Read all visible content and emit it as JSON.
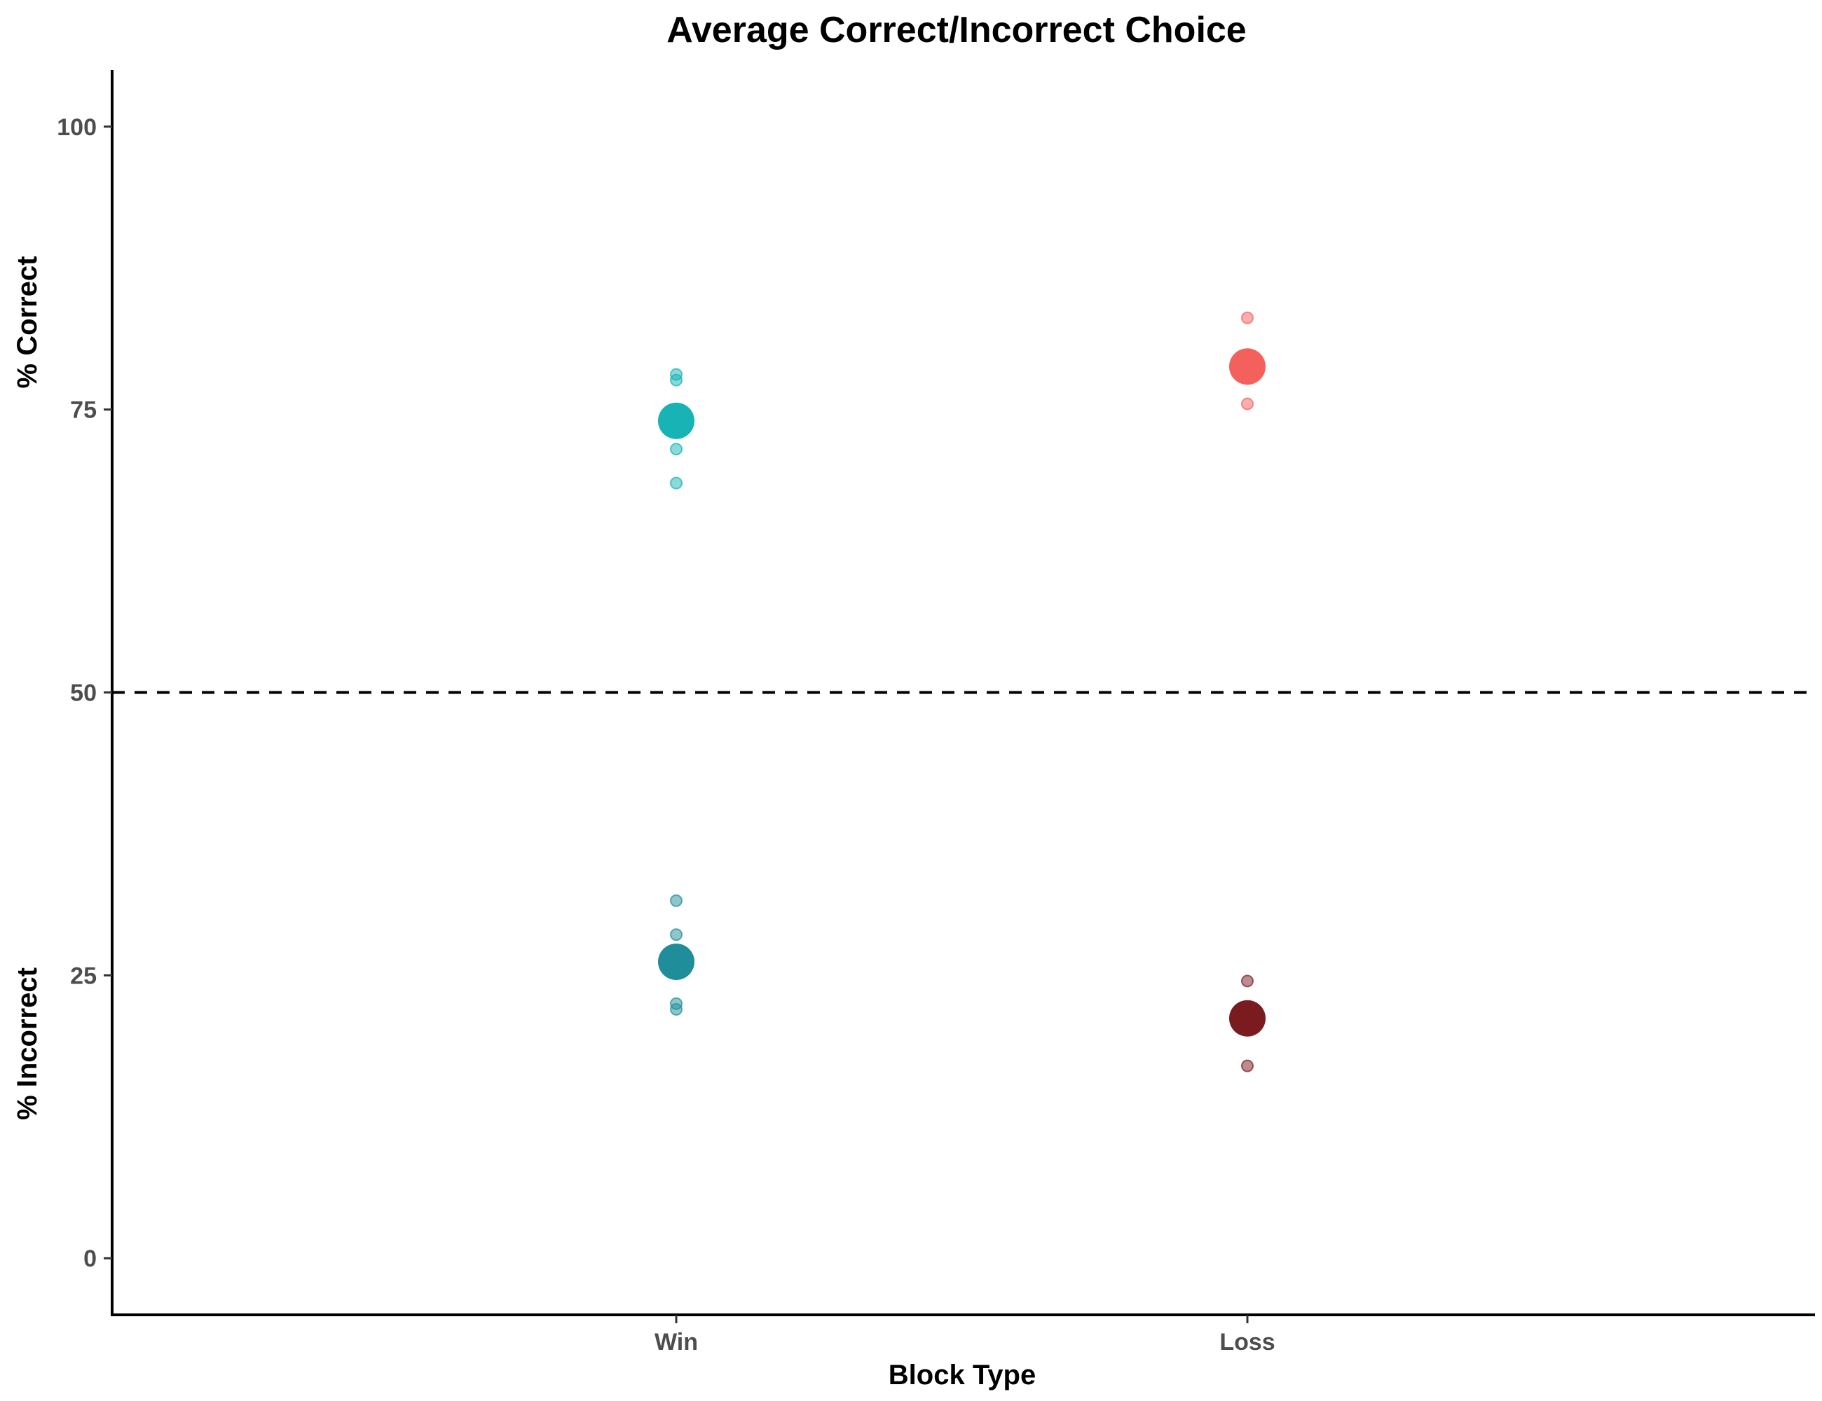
{
  "chart_data": {
    "type": "scatter",
    "title": "Average Correct/Incorrect Choice",
    "xlabel": "Block Type",
    "ylabel_top": "% Correct",
    "ylabel_bottom": "% Incorrect",
    "categories": [
      "Win",
      "Loss"
    ],
    "ylim": [
      -5,
      105
    ],
    "yticks": [
      0,
      25,
      50,
      75,
      100
    ],
    "reference_line": {
      "y": 50,
      "style": "dashed"
    },
    "grid": false,
    "series": [
      {
        "category": "Win",
        "group": "correct",
        "color": "#17b3b5",
        "mean": 74,
        "points": [
          78.1,
          77.6,
          71.5,
          68.5
        ]
      },
      {
        "category": "Win",
        "group": "incorrect",
        "color": "#208e9a",
        "mean": 26.2,
        "points": [
          31.6,
          28.6,
          22.5,
          22.0
        ]
      },
      {
        "category": "Loss",
        "group": "correct",
        "color": "#f4605b",
        "mean": 78.8,
        "points": [
          83.1,
          77.8,
          75.5
        ]
      },
      {
        "category": "Loss",
        "group": "incorrect",
        "color": "#7a1c1f",
        "mean": 21.2,
        "points": [
          24.5,
          22.2,
          17.0
        ]
      }
    ]
  }
}
